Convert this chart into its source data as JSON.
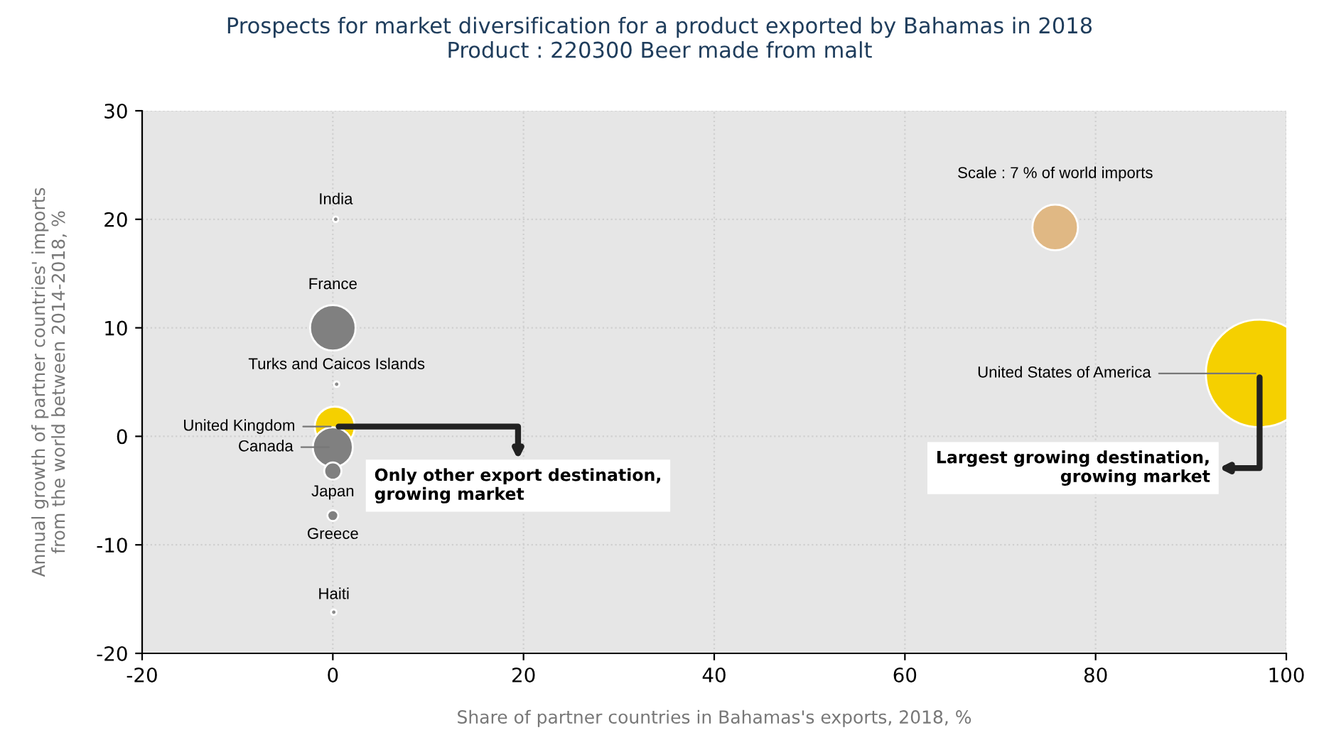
{
  "chart_data": {
    "type": "bubble",
    "title": "Prospects for market diversification for a product exported by Bahamas in 2018",
    "subtitle": "Product : 220300 Beer made from malt",
    "xlabel": "Share of partner countries in Bahamas's exports, 2018, %",
    "ylabel": "Annual growth of partner countries' imports\nfrom the world between 2014-2018, %",
    "x": [
      0.3,
      0,
      0.4,
      0.2,
      0,
      0,
      0,
      0.1,
      97.2
    ],
    "values": [
      20,
      10,
      4.8,
      0.9,
      -1,
      -3.2,
      -7.3,
      -16.2,
      5.8
    ],
    "sizes": [
      0.1,
      7,
      0.1,
      5.4,
      5.4,
      1,
      0.4,
      0.1,
      39
    ],
    "colors": [
      "#8c8c8c",
      "#808080",
      "#8c8c8c",
      "#f5d000",
      "#808080",
      "#808080",
      "#808080",
      "#8c8c8c",
      "#f5d000"
    ],
    "size_legend": [
      {
        "value": 7,
        "label": "Scale : 7 % of world imports"
      }
    ],
    "annotations": [
      {
        "text": "India",
        "x": 0.3,
        "y": 20
      },
      {
        "text": "France",
        "x": 0,
        "y": 10
      },
      {
        "text": "Turks and Caicos Islands",
        "x": 0.4,
        "y": 4.8
      },
      {
        "text": "United Kingdom",
        "x": 0.2,
        "y": 0.9
      },
      {
        "text": "Canada",
        "x": 0,
        "y": -1
      },
      {
        "text": "Japan",
        "x": 0,
        "y": -3.2
      },
      {
        "text": "Greece",
        "x": 0,
        "y": -7.3
      },
      {
        "text": "Haiti",
        "x": 0.1,
        "y": -16.2
      },
      {
        "text": "United States of America",
        "x": 97.2,
        "y": 5.8
      },
      {
        "text": "Only other export destination,\ngrowing market",
        "x": 0.2,
        "y": 0.9
      },
      {
        "text": "Largest growing destination,\ngrowing market",
        "x": 97.2,
        "y": 5.8
      }
    ],
    "xlim": [
      -20,
      100
    ],
    "xticks": [
      -20,
      0,
      20,
      40,
      60,
      80,
      100
    ],
    "ylim": [
      -20,
      30
    ],
    "yticks": [
      -20,
      -10,
      0,
      10,
      20,
      30
    ],
    "grid": true
  }
}
